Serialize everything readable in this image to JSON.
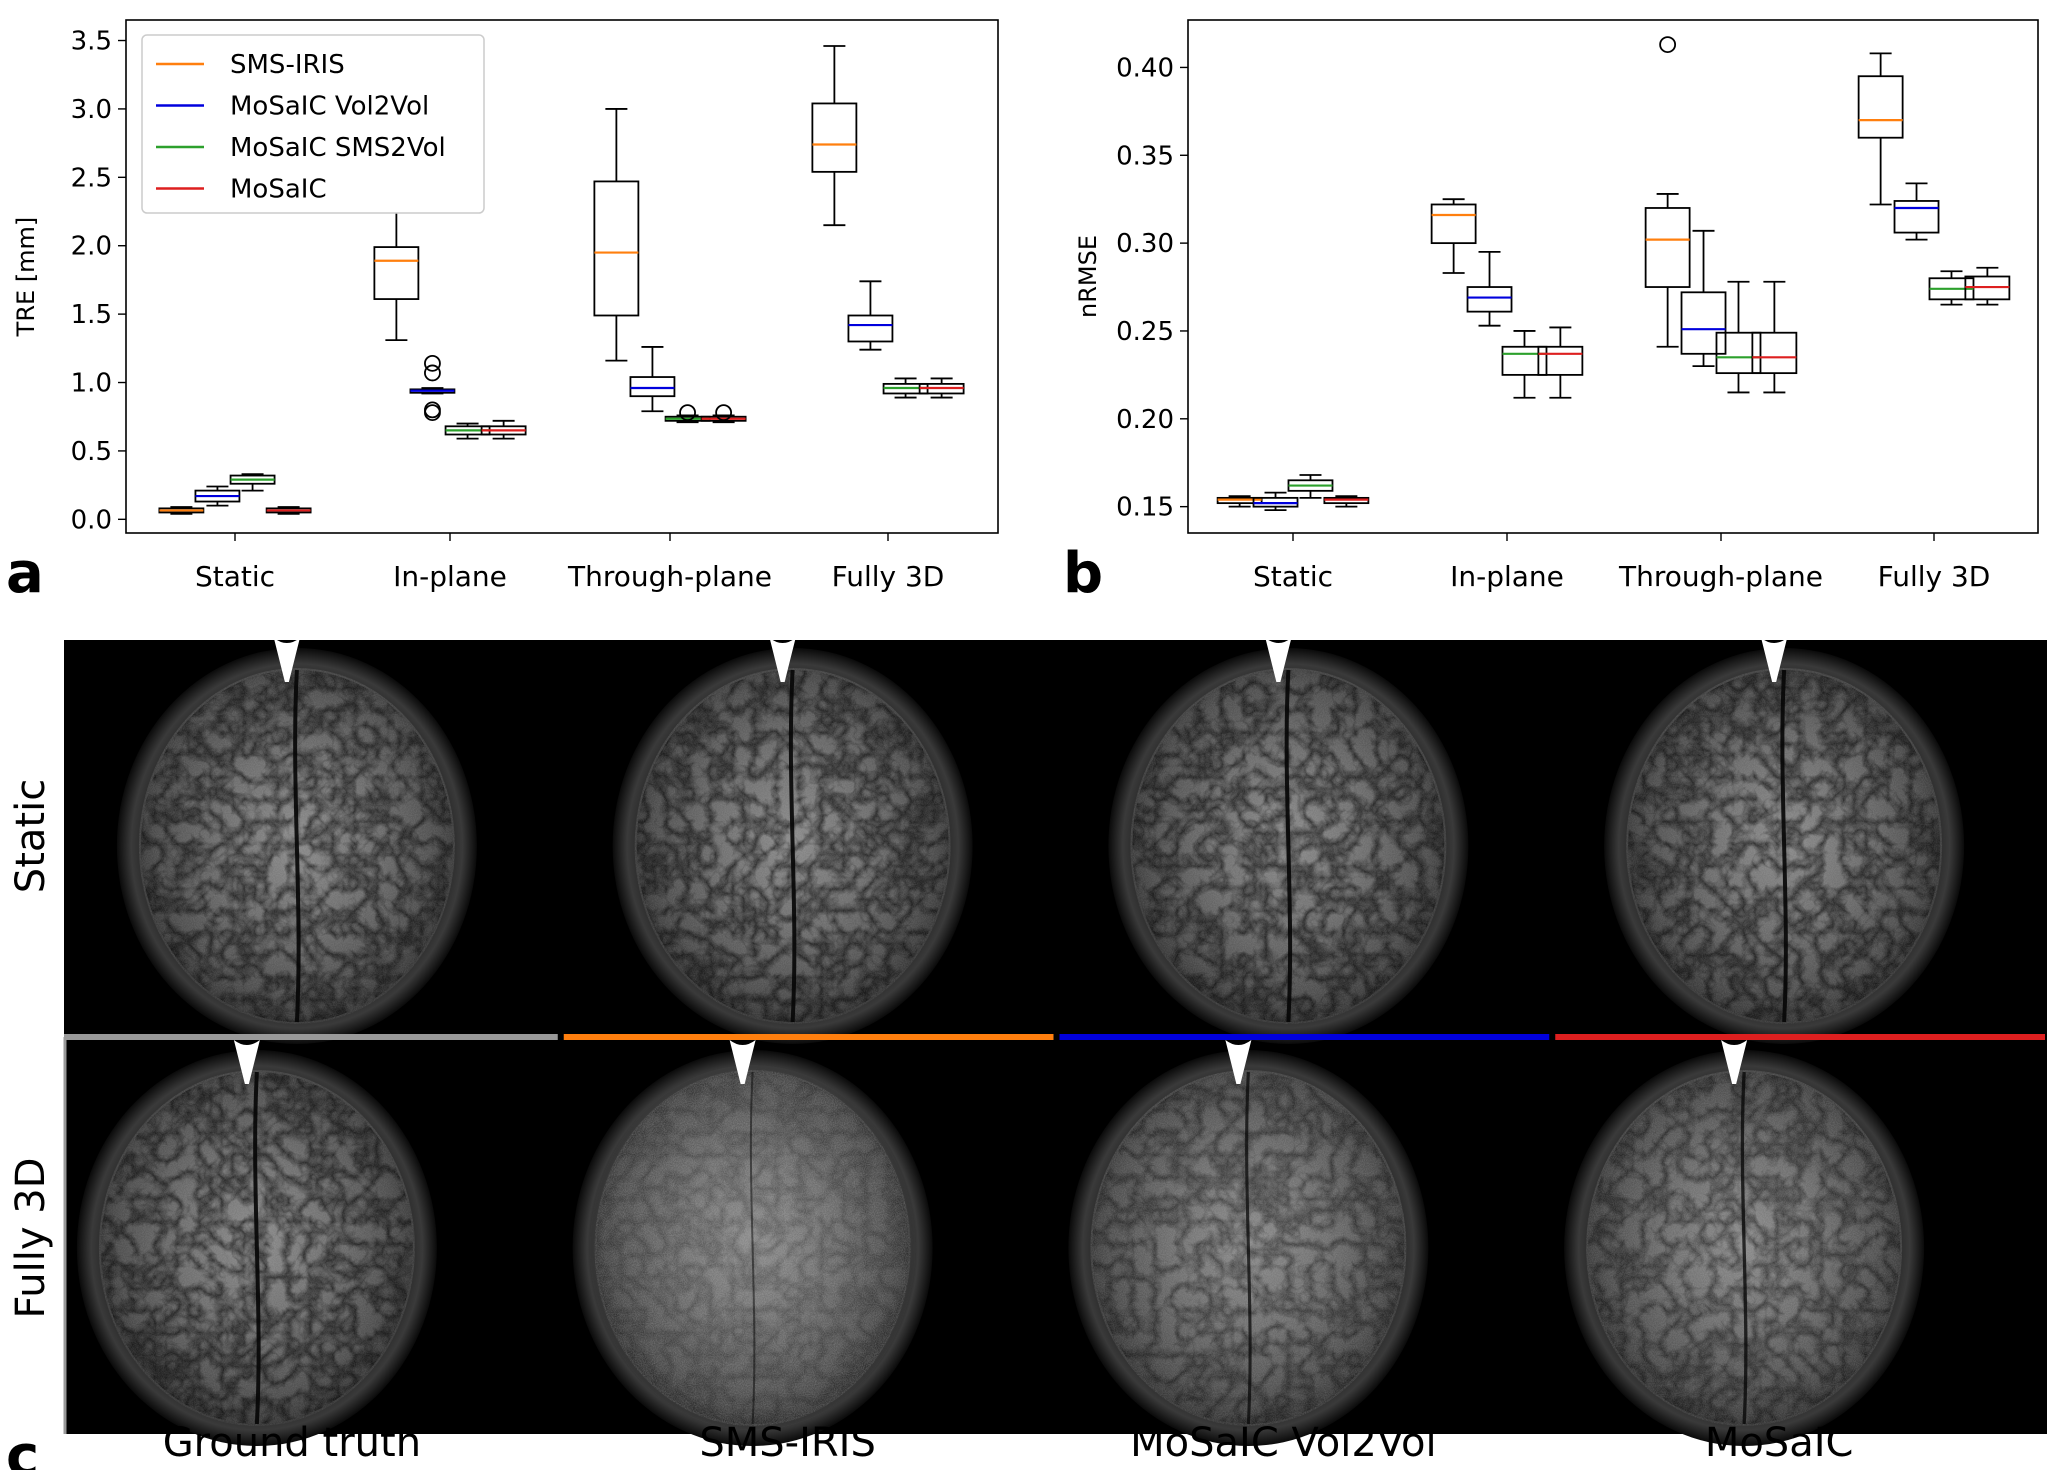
{
  "panel_labels": {
    "a": "a",
    "b": "b",
    "c": "c"
  },
  "colors": {
    "SMS-IRIS": "#ff7f0e",
    "MoSaIC Vol2Vol": "#0000dd",
    "MoSaIC SMS2Vol": "#2ca02c",
    "MoSaIC": "#dd1f1f",
    "Ground truth": "#999999"
  },
  "chart_data": [
    {
      "id": "a",
      "type": "box",
      "title": "",
      "xlabel": "",
      "ylabel": "TRE [mm]",
      "ylim": [
        -0.1,
        3.65
      ],
      "yticks": [
        0.0,
        0.5,
        1.0,
        1.5,
        2.0,
        2.5,
        3.0,
        3.5
      ],
      "ytick_labels": [
        "0.0",
        "0.5",
        "1.0",
        "1.5",
        "2.0",
        "2.5",
        "3.0",
        "3.5"
      ],
      "categories": [
        "Static",
        "In-plane",
        "Through-plane",
        "Fully 3D"
      ],
      "legend": {
        "position": "top-left",
        "entries": [
          "SMS-IRIS",
          "MoSaIC Vol2Vol",
          "MoSaIC SMS2Vol",
          "MoSaIC"
        ]
      },
      "series": [
        {
          "name": "SMS-IRIS",
          "boxes": [
            {
              "min": 0.04,
              "q1": 0.05,
              "median": 0.065,
              "q3": 0.08,
              "max": 0.09,
              "outliers": []
            },
            {
              "min": 1.31,
              "q1": 1.61,
              "median": 1.89,
              "q3": 1.99,
              "max": 2.25,
              "outliers": []
            },
            {
              "min": 1.16,
              "q1": 1.49,
              "median": 1.95,
              "q3": 2.47,
              "max": 3.0,
              "outliers": []
            },
            {
              "min": 2.15,
              "q1": 2.54,
              "median": 2.74,
              "q3": 3.04,
              "max": 3.46,
              "outliers": []
            }
          ]
        },
        {
          "name": "MoSaIC Vol2Vol",
          "boxes": [
            {
              "min": 0.1,
              "q1": 0.13,
              "median": 0.17,
              "q3": 0.21,
              "max": 0.24,
              "outliers": []
            },
            {
              "min": 0.92,
              "q1": 0.925,
              "median": 0.94,
              "q3": 0.95,
              "max": 0.96,
              "outliers": [
                0.78,
                0.8,
                1.07,
                1.14
              ]
            },
            {
              "min": 0.79,
              "q1": 0.9,
              "median": 0.96,
              "q3": 1.04,
              "max": 1.26,
              "outliers": []
            },
            {
              "min": 1.24,
              "q1": 1.3,
              "median": 1.42,
              "q3": 1.49,
              "max": 1.74,
              "outliers": []
            }
          ]
        },
        {
          "name": "MoSaIC SMS2Vol",
          "boxes": [
            {
              "min": 0.21,
              "q1": 0.26,
              "median": 0.29,
              "q3": 0.32,
              "max": 0.33,
              "outliers": []
            },
            {
              "min": 0.59,
              "q1": 0.62,
              "median": 0.65,
              "q3": 0.68,
              "max": 0.7,
              "outliers": []
            },
            {
              "min": 0.71,
              "q1": 0.72,
              "median": 0.735,
              "q3": 0.75,
              "max": 0.76,
              "outliers": [
                0.78
              ]
            },
            {
              "min": 0.89,
              "q1": 0.92,
              "median": 0.96,
              "q3": 0.99,
              "max": 1.03,
              "outliers": []
            }
          ]
        },
        {
          "name": "MoSaIC",
          "boxes": [
            {
              "min": 0.04,
              "q1": 0.05,
              "median": 0.065,
              "q3": 0.08,
              "max": 0.09,
              "outliers": []
            },
            {
              "min": 0.59,
              "q1": 0.62,
              "median": 0.65,
              "q3": 0.68,
              "max": 0.72,
              "outliers": []
            },
            {
              "min": 0.71,
              "q1": 0.72,
              "median": 0.735,
              "q3": 0.75,
              "max": 0.76,
              "outliers": [
                0.78
              ]
            },
            {
              "min": 0.89,
              "q1": 0.92,
              "median": 0.96,
              "q3": 0.99,
              "max": 1.03,
              "outliers": []
            }
          ]
        }
      ]
    },
    {
      "id": "b",
      "type": "box",
      "title": "",
      "xlabel": "",
      "ylabel": "nRMSE",
      "ylim": [
        0.135,
        0.427
      ],
      "yticks": [
        0.15,
        0.2,
        0.25,
        0.3,
        0.35,
        0.4
      ],
      "ytick_labels": [
        "0.15",
        "0.20",
        "0.25",
        "0.30",
        "0.35",
        "0.40"
      ],
      "categories": [
        "Static",
        "In-plane",
        "Through-plane",
        "Fully 3D"
      ],
      "legend": null,
      "series": [
        {
          "name": "SMS-IRIS",
          "boxes": [
            {
              "min": 0.15,
              "q1": 0.152,
              "median": 0.154,
              "q3": 0.155,
              "max": 0.156,
              "outliers": []
            },
            {
              "min": 0.283,
              "q1": 0.3,
              "median": 0.316,
              "q3": 0.322,
              "max": 0.325,
              "outliers": []
            },
            {
              "min": 0.241,
              "q1": 0.275,
              "median": 0.302,
              "q3": 0.32,
              "max": 0.328,
              "outliers": [
                0.413
              ]
            },
            {
              "min": 0.322,
              "q1": 0.36,
              "median": 0.37,
              "q3": 0.395,
              "max": 0.408,
              "outliers": []
            }
          ]
        },
        {
          "name": "MoSaIC Vol2Vol",
          "boxes": [
            {
              "min": 0.148,
              "q1": 0.15,
              "median": 0.152,
              "q3": 0.155,
              "max": 0.158,
              "outliers": []
            },
            {
              "min": 0.253,
              "q1": 0.261,
              "median": 0.269,
              "q3": 0.275,
              "max": 0.295,
              "outliers": []
            },
            {
              "min": 0.23,
              "q1": 0.237,
              "median": 0.251,
              "q3": 0.272,
              "max": 0.307,
              "outliers": []
            },
            {
              "min": 0.302,
              "q1": 0.306,
              "median": 0.32,
              "q3": 0.324,
              "max": 0.334,
              "outliers": []
            }
          ]
        },
        {
          "name": "MoSaIC SMS2Vol",
          "boxes": [
            {
              "min": 0.155,
              "q1": 0.159,
              "median": 0.162,
              "q3": 0.165,
              "max": 0.168,
              "outliers": []
            },
            {
              "min": 0.212,
              "q1": 0.225,
              "median": 0.237,
              "q3": 0.241,
              "max": 0.25,
              "outliers": []
            },
            {
              "min": 0.215,
              "q1": 0.226,
              "median": 0.235,
              "q3": 0.249,
              "max": 0.278,
              "outliers": []
            },
            {
              "min": 0.265,
              "q1": 0.268,
              "median": 0.274,
              "q3": 0.28,
              "max": 0.284,
              "outliers": []
            }
          ]
        },
        {
          "name": "MoSaIC",
          "boxes": [
            {
              "min": 0.15,
              "q1": 0.152,
              "median": 0.154,
              "q3": 0.155,
              "max": 0.156,
              "outliers": []
            },
            {
              "min": 0.212,
              "q1": 0.225,
              "median": 0.237,
              "q3": 0.241,
              "max": 0.252,
              "outliers": []
            },
            {
              "min": 0.215,
              "q1": 0.226,
              "median": 0.235,
              "q3": 0.249,
              "max": 0.278,
              "outliers": []
            },
            {
              "min": 0.265,
              "q1": 0.268,
              "median": 0.275,
              "q3": 0.281,
              "max": 0.286,
              "outliers": []
            }
          ]
        }
      ]
    }
  ],
  "image_grid": {
    "row_labels": [
      "Static",
      "Fully 3D"
    ],
    "column_labels": [
      "Ground truth",
      "SMS-IRIS",
      "MoSaIC Vol2Vol",
      "MoSaIC"
    ],
    "column_colors": [
      "#999999",
      "#ff7f0e",
      "#0000dd",
      "#dd1f1f"
    ],
    "blur": [
      [
        0,
        0,
        0,
        0
      ],
      [
        0,
        1,
        0.45,
        0.35
      ]
    ]
  }
}
